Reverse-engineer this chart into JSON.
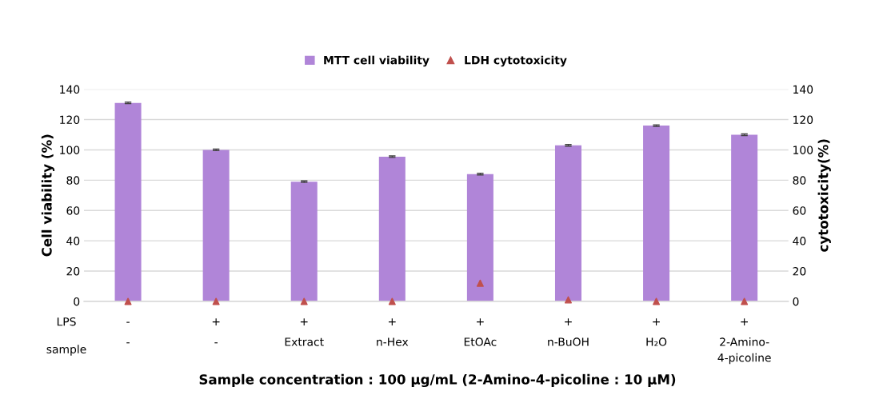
{
  "chart_data": {
    "type": "bar",
    "categories": [
      "-\n-",
      "+\n-",
      "+\nExtract",
      "+\nn-Hex",
      "+\nEtOAc",
      "+\nn-BuOH",
      "+\nH₂O",
      "+\n2-Amino-\n4-picoline"
    ],
    "series": [
      {
        "name": "MTT cell viability",
        "color": "#b085d8",
        "values": [
          131,
          100,
          79,
          95.5,
          84,
          103,
          116,
          110
        ],
        "errors": [
          0.5,
          0.5,
          0.5,
          0.5,
          0.5,
          0.5,
          0.5,
          0.5
        ]
      },
      {
        "name": "LDH cytotoxicity",
        "type": "scatter",
        "axis": "y2",
        "color": "#c0504d",
        "marker": "triangle",
        "values": [
          0,
          0,
          0,
          0,
          12,
          1,
          0,
          0
        ]
      }
    ],
    "ylabel": "Cell viability (%)",
    "y2label": "cytotoxicity(%)",
    "annotations": [
      "LPS",
      "sample",
      "Sample concentration : 100 μg/mL (2-Amino-4-picoline : 10 μM)"
    ],
    "ylim": [
      0,
      140
    ],
    "yticks": [
      0,
      20,
      40,
      60,
      80,
      100,
      120,
      140
    ],
    "y2lim": [
      0,
      140
    ],
    "y2ticks": [
      0,
      20,
      40,
      60,
      80,
      100,
      120,
      140
    ],
    "grid": "y",
    "legend": "top"
  }
}
